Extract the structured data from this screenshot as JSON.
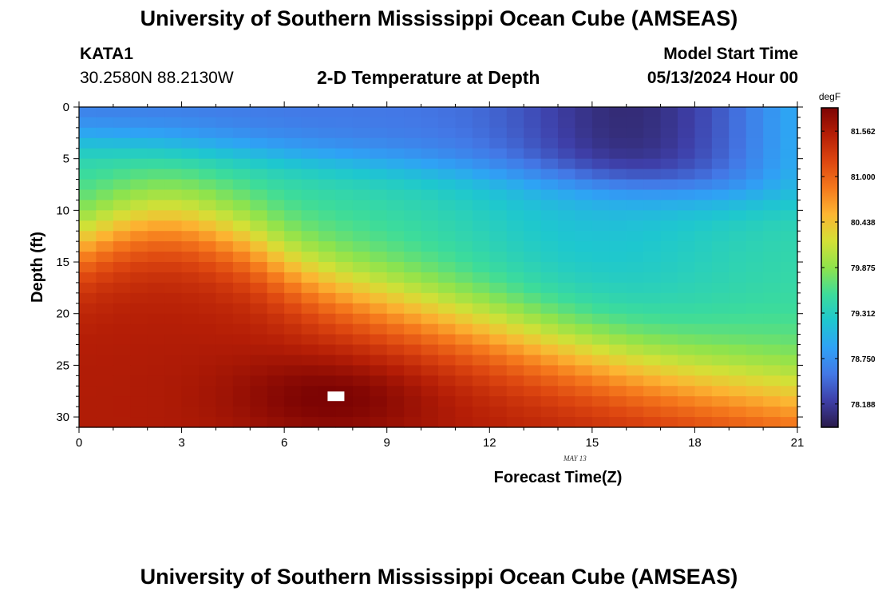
{
  "header": {
    "title": "University of Southern Mississippi Ocean Cube (AMSEAS)",
    "station": "KATA1",
    "coords": "30.2580N  88.2130W",
    "subtitle": "2-D Temperature at Depth",
    "model_start_label": "Model Start Time",
    "model_start_value": "05/13/2024 Hour 00"
  },
  "footer": {
    "title": "University of Southern Mississippi Ocean Cube (AMSEAS)"
  },
  "chart_data": {
    "type": "heatmap",
    "title": "2-D Temperature at Depth",
    "xlabel": "Forecast Time(Z)",
    "ylabel": "Depth (ft)",
    "x_range": [
      0,
      21
    ],
    "y_range": [
      0,
      31
    ],
    "y_inverted": true,
    "xticks": [
      0,
      3,
      6,
      9,
      12,
      15,
      18,
      21
    ],
    "yticks": [
      0,
      5,
      10,
      15,
      20,
      25,
      30
    ],
    "date_annotation": "MAY 13",
    "colorbar": {
      "unit": "degF",
      "min": 77.9,
      "max": 81.85,
      "ticks": [
        "78.188",
        "78.750",
        "79.312",
        "79.875",
        "80.438",
        "81.000",
        "81.562"
      ],
      "colormap": [
        "#2a1b4a",
        "#3e3fa8",
        "#4378e6",
        "#2fa2f5",
        "#1ec7cf",
        "#3ddc9a",
        "#8fe34c",
        "#d4e036",
        "#fcb532",
        "#f5781c",
        "#dd4610",
        "#b51e06",
        "#7d0403"
      ]
    },
    "field_description": "Warm water (>81 degF) occupies 15-31 ft in early hours, rising toward the surface then retreating deeper over time; surface layer cold (~78 degF) with a minimum near 15-16Z.",
    "missing_cell": {
      "x": 7.5,
      "y": 28
    }
  }
}
